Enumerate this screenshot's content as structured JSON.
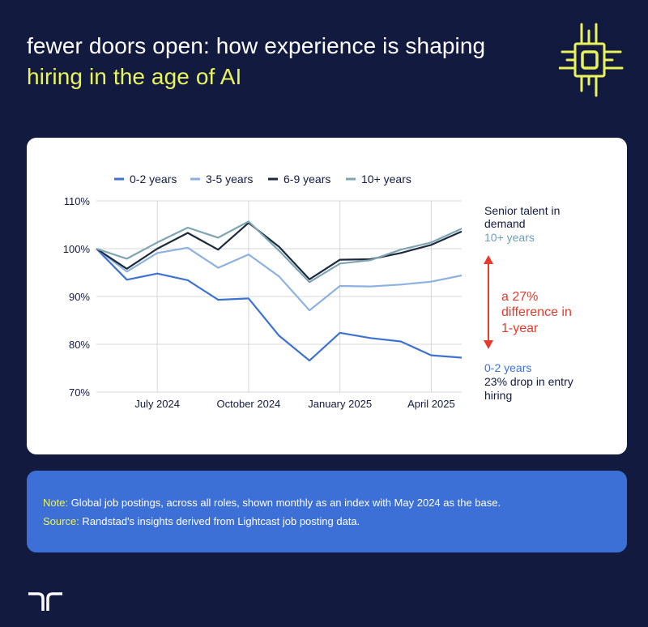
{
  "header": {
    "title_line1": "fewer doors open: how experience is shaping",
    "title_line2": "hiring in the age of AI"
  },
  "icons": {
    "header_logo": "chip-icon",
    "brand_logo": "randstad-logo-icon"
  },
  "colors": {
    "background": "#121a3f",
    "accent_yellow": "#e9f45d",
    "note_card": "#3d70d6",
    "arrow_red": "#e53a2c"
  },
  "chart_data": {
    "type": "line",
    "x": [
      "May 2024",
      "Jun 2024",
      "Jul 2024",
      "Aug 2024",
      "Sep 2024",
      "Oct 2024",
      "Nov 2024",
      "Dec 2024",
      "Jan 2025",
      "Feb 2025",
      "Mar 2025",
      "Apr 2025",
      "May 2025"
    ],
    "xtick_labels": [
      "July 2024",
      "October 2024",
      "January 2025",
      "April 2025"
    ],
    "ytick_labels": [
      "70%",
      "80%",
      "90%",
      "100%",
      "110%"
    ],
    "ylim": [
      70,
      110
    ],
    "grid": true,
    "legend_position": "top",
    "series": [
      {
        "name": "0-2 years",
        "color": "#3d72d3",
        "values": [
          100,
          93.5,
          94.8,
          93.4,
          89.3,
          89.6,
          81.8,
          76.6,
          82.4,
          81.3,
          80.6,
          77.7,
          77.2
        ]
      },
      {
        "name": "3-5 years",
        "color": "#8eb1e2",
        "values": [
          100,
          95.2,
          99.1,
          100.2,
          96.0,
          98.8,
          94.2,
          87.1,
          92.2,
          92.1,
          92.5,
          93.1,
          94.4
        ]
      },
      {
        "name": "6-9 years",
        "color": "#1d2a3e",
        "values": [
          100,
          95.8,
          100.0,
          103.3,
          99.8,
          105.4,
          100.4,
          93.6,
          97.7,
          97.8,
          99.1,
          100.8,
          103.6
        ]
      },
      {
        "name": "10+ years",
        "color": "#7ea5b1",
        "values": [
          100,
          97.9,
          101.3,
          104.4,
          102.3,
          105.7,
          99.6,
          93.0,
          96.9,
          97.6,
          99.8,
          101.3,
          104.2
        ]
      }
    ],
    "annotations": {
      "senior_line1": "Senior talent in",
      "senior_line2": "demand",
      "senior_sub": "10+ years",
      "diff_line1": "a 27%",
      "diff_line2": "difference in",
      "diff_line3": "1-year",
      "entry_sub": "0-2 years",
      "entry_line1": "23% drop in entry",
      "entry_line2": "hiring"
    }
  },
  "note": {
    "note_label": "Note:",
    "note_text": " Global job postings, across all roles, shown monthly as an index with May 2024 as the base.",
    "source_label": "Source:",
    "source_text": " Randstad's insights derived from Lightcast job posting data."
  }
}
